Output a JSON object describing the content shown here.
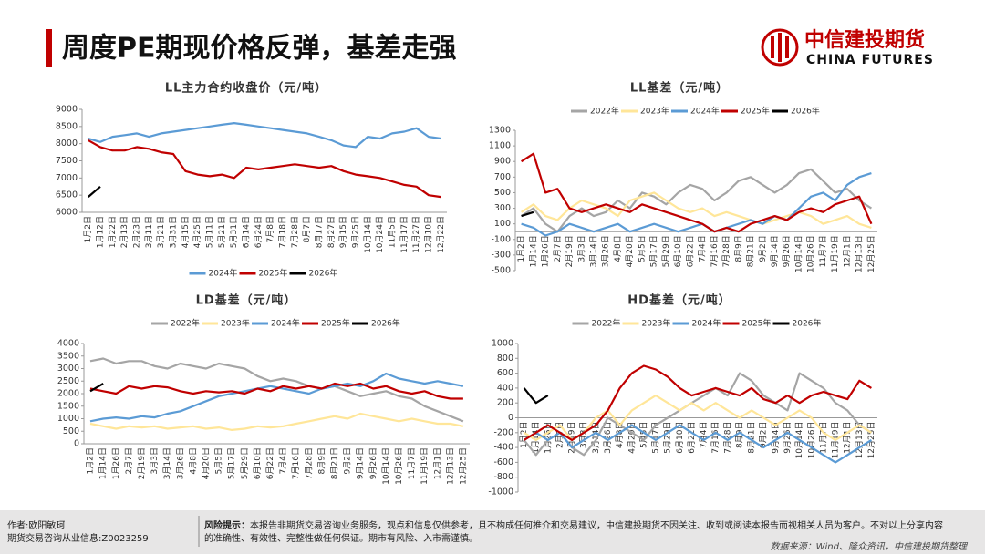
{
  "header": {
    "title": "周度PE期现价格反弹，基差走强",
    "logo_cn": "中信建投期货",
    "logo_en": "CHINA FUTURES"
  },
  "chart_data": [
    {
      "type": "line",
      "title": "LL主力合约收盘价（元/吨）",
      "legend": "bottom",
      "grid": false,
      "categories": [
        "1月2日",
        "1月12日",
        "1月22日",
        "2月13日",
        "2月23日",
        "3月11日",
        "3月21日",
        "3月31日",
        "4月15日",
        "4月25日",
        "5月11日",
        "5月21日",
        "5月31日",
        "6月14日",
        "6月24日",
        "7月8日",
        "7月18日",
        "7月28日",
        "8月7日",
        "8月17日",
        "8月27日",
        "9月15日",
        "9月25日",
        "10月14日",
        "10月24日",
        "11月5日",
        "11月17日",
        "11月27日",
        "12月10日",
        "12月22日"
      ],
      "ylim": [
        6000,
        9000
      ],
      "yticks": [
        6000,
        6500,
        7000,
        7500,
        8000,
        8500,
        9000
      ],
      "series": [
        {
          "name": "2024年",
          "color": "#5b9bd5",
          "values": [
            8150,
            8050,
            8200,
            8250,
            8300,
            8200,
            8300,
            8350,
            8400,
            8450,
            8500,
            8550,
            8600,
            8550,
            8500,
            8450,
            8400,
            8350,
            8300,
            8200,
            8100,
            7950,
            7900,
            8200,
            8150,
            8300,
            8350,
            8450,
            8200,
            8150
          ]
        },
        {
          "name": "2025年",
          "color": "#c00000",
          "values": [
            8100,
            7900,
            7800,
            7800,
            7900,
            7850,
            7750,
            7700,
            7200,
            7100,
            7050,
            7100,
            7000,
            7300,
            7250,
            7300,
            7350,
            7400,
            7350,
            7300,
            7350,
            7200,
            7100,
            7050,
            7000,
            6900,
            6800,
            6750,
            6500,
            6450
          ]
        },
        {
          "name": "2026年",
          "color": "#000000",
          "values": [
            6450,
            6750,
            null,
            null,
            null,
            null,
            null,
            null,
            null,
            null,
            null,
            null,
            null,
            null,
            null,
            null,
            null,
            null,
            null,
            null,
            null,
            null,
            null,
            null,
            null,
            null,
            null,
            null,
            null,
            null
          ]
        }
      ]
    },
    {
      "type": "line",
      "title": "LL基差（元/吨）",
      "legend": "top",
      "grid": false,
      "categories": [
        "1月2日",
        "1月14日",
        "1月26日",
        "2月7日",
        "2月19日",
        "3月3日",
        "3月14日",
        "3月26日",
        "4月8日",
        "4月20日",
        "5月5日",
        "5月17日",
        "5月29日",
        "6月10日",
        "6月22日",
        "7月4日",
        "7月16日",
        "7月28日",
        "8月9日",
        "8月21日",
        "9月2日",
        "9月14日",
        "9月26日",
        "10月14日",
        "10月26日",
        "11月7日",
        "11月19日",
        "12月1日",
        "12月13日",
        "12月25日"
      ],
      "ylim": [
        -500,
        1300
      ],
      "yticks": [
        -500,
        -300,
        -100,
        100,
        300,
        500,
        700,
        900,
        1100,
        1300
      ],
      "series": [
        {
          "name": "2022年",
          "color": "#a5a5a5",
          "values": [
            200,
            300,
            100,
            0,
            200,
            300,
            200,
            250,
            400,
            300,
            500,
            450,
            350,
            500,
            600,
            550,
            400,
            500,
            650,
            700,
            600,
            500,
            600,
            750,
            800,
            650,
            500,
            550,
            400,
            300
          ]
        },
        {
          "name": "2023年",
          "color": "#ffe699",
          "values": [
            250,
            350,
            200,
            150,
            300,
            400,
            350,
            300,
            200,
            400,
            450,
            500,
            400,
            300,
            250,
            300,
            200,
            250,
            200,
            150,
            100,
            150,
            200,
            250,
            200,
            100,
            150,
            200,
            100,
            50
          ]
        },
        {
          "name": "2024年",
          "color": "#5b9bd5",
          "values": [
            100,
            50,
            -50,
            0,
            100,
            50,
            0,
            50,
            100,
            0,
            50,
            100,
            50,
            0,
            50,
            100,
            0,
            50,
            100,
            150,
            100,
            200,
            150,
            300,
            450,
            500,
            400,
            600,
            700,
            750
          ]
        },
        {
          "name": "2025年",
          "color": "#c00000",
          "values": [
            900,
            1000,
            500,
            550,
            300,
            250,
            300,
            350,
            300,
            250,
            350,
            300,
            250,
            200,
            150,
            100,
            0,
            50,
            0,
            100,
            150,
            200,
            150,
            250,
            300,
            250,
            350,
            400,
            450,
            100
          ]
        },
        {
          "name": "2026年",
          "color": "#000000",
          "values": [
            200,
            250,
            null,
            null,
            null,
            null,
            null,
            null,
            null,
            null,
            null,
            null,
            null,
            null,
            null,
            null,
            null,
            null,
            null,
            null,
            null,
            null,
            null,
            null,
            null,
            null,
            null,
            null,
            null,
            null
          ]
        }
      ]
    },
    {
      "type": "line",
      "title": "LD基差（元/吨）",
      "legend": "top",
      "grid": false,
      "categories": [
        "1月2日",
        "1月14日",
        "1月26日",
        "2月7日",
        "2月19日",
        "3月3日",
        "3月14日",
        "3月26日",
        "4月8日",
        "4月20日",
        "5月5日",
        "5月17日",
        "5月29日",
        "6月10日",
        "6月22日",
        "7月4日",
        "7月16日",
        "7月28日",
        "8月9日",
        "8月21日",
        "9月2日",
        "9月14日",
        "9月26日",
        "10月14日",
        "10月26日",
        "11月7日",
        "11月19日",
        "12月1日",
        "12月13日",
        "12月25日"
      ],
      "ylim": [
        0,
        4000
      ],
      "yticks": [
        0,
        500,
        1000,
        1500,
        2000,
        2500,
        3000,
        3500,
        4000
      ],
      "series": [
        {
          "name": "2022年",
          "color": "#a5a5a5",
          "values": [
            3300,
            3400,
            3200,
            3300,
            3300,
            3100,
            3000,
            3200,
            3100,
            3000,
            3200,
            3100,
            3000,
            2700,
            2500,
            2600,
            2500,
            2300,
            2200,
            2300,
            2100,
            1900,
            2000,
            2100,
            1900,
            1800,
            1500,
            1300,
            1100,
            900
          ]
        },
        {
          "name": "2023年",
          "color": "#ffe699",
          "values": [
            800,
            700,
            600,
            700,
            650,
            700,
            600,
            650,
            700,
            600,
            650,
            550,
            600,
            700,
            650,
            700,
            800,
            900,
            1000,
            1100,
            1000,
            1200,
            1100,
            1000,
            900,
            1000,
            900,
            800,
            800,
            700
          ]
        },
        {
          "name": "2024年",
          "color": "#5b9bd5",
          "values": [
            900,
            1000,
            1050,
            1000,
            1100,
            1050,
            1200,
            1300,
            1500,
            1700,
            1900,
            2000,
            2100,
            2200,
            2300,
            2200,
            2100,
            2000,
            2200,
            2300,
            2400,
            2300,
            2500,
            2800,
            2600,
            2500,
            2400,
            2500,
            2400,
            2300
          ]
        },
        {
          "name": "2025年",
          "color": "#c00000",
          "values": [
            2200,
            2100,
            2000,
            2300,
            2200,
            2300,
            2250,
            2100,
            2000,
            2100,
            2050,
            2100,
            2000,
            2200,
            2100,
            2300,
            2200,
            2300,
            2200,
            2400,
            2300,
            2400,
            2200,
            2300,
            2100,
            2000,
            2100,
            1900,
            1800,
            1800
          ]
        },
        {
          "name": "2026年",
          "color": "#000000",
          "values": [
            2100,
            2400,
            null,
            null,
            null,
            null,
            null,
            null,
            null,
            null,
            null,
            null,
            null,
            null,
            null,
            null,
            null,
            null,
            null,
            null,
            null,
            null,
            null,
            null,
            null,
            null,
            null,
            null,
            null,
            null
          ]
        }
      ]
    },
    {
      "type": "line",
      "title": "HD基差（元/吨）",
      "legend": "top",
      "grid": false,
      "categories": [
        "1月2日",
        "1月14日",
        "1月26日",
        "2月7日",
        "2月19日",
        "3月3日",
        "3月14日",
        "3月26日",
        "4月8日",
        "4月20日",
        "5月5日",
        "5月17日",
        "5月29日",
        "6月10日",
        "6月22日",
        "7月4日",
        "7月16日",
        "7月28日",
        "8月9日",
        "8月21日",
        "9月2日",
        "9月14日",
        "9月26日",
        "10月14日",
        "10月26日",
        "11月7日",
        "11月19日",
        "12月1日",
        "12月13日",
        "12月25日"
      ],
      "ylim": [
        -1000,
        1000
      ],
      "yticks": [
        -1000,
        -800,
        -600,
        -400,
        -200,
        0,
        200,
        400,
        600,
        800,
        1000
      ],
      "series": [
        {
          "name": "2022年",
          "color": "#a5a5a5",
          "values": [
            -300,
            -500,
            -300,
            -200,
            -400,
            -500,
            -300,
            0,
            -100,
            -200,
            -300,
            -100,
            0,
            100,
            200,
            300,
            400,
            300,
            600,
            500,
            300,
            200,
            100,
            600,
            500,
            400,
            200,
            100,
            -100,
            -200
          ]
        },
        {
          "name": "2023年",
          "color": "#ffe699",
          "values": [
            -200,
            -300,
            -200,
            -100,
            -300,
            -200,
            0,
            100,
            -100,
            100,
            200,
            300,
            200,
            100,
            200,
            100,
            200,
            100,
            0,
            100,
            0,
            -100,
            0,
            100,
            0,
            -200,
            -300,
            -200,
            -100,
            -200
          ]
        },
        {
          "name": "2024年",
          "color": "#5b9bd5",
          "values": [
            -300,
            -200,
            -300,
            -200,
            -400,
            -300,
            -200,
            -300,
            -200,
            -100,
            -200,
            -300,
            -200,
            -100,
            -200,
            -300,
            -200,
            -300,
            -200,
            -300,
            -400,
            -300,
            -200,
            -300,
            -400,
            -500,
            -600,
            -500,
            -400,
            -300
          ]
        },
        {
          "name": "2025年",
          "color": "#c00000",
          "values": [
            -300,
            -200,
            -100,
            -200,
            -300,
            -200,
            -100,
            100,
            400,
            600,
            700,
            650,
            550,
            400,
            300,
            350,
            400,
            350,
            300,
            400,
            250,
            200,
            300,
            200,
            300,
            350,
            300,
            250,
            500,
            400
          ]
        },
        {
          "name": "2026年",
          "color": "#000000",
          "values": [
            400,
            200,
            300,
            null,
            null,
            null,
            null,
            null,
            null,
            null,
            null,
            null,
            null,
            null,
            null,
            null,
            null,
            null,
            null,
            null,
            null,
            null,
            null,
            null,
            null,
            null,
            null,
            null,
            null,
            null
          ]
        }
      ]
    }
  ],
  "footer": {
    "author": "作者:欧阳敏珂",
    "license": "期货交易咨询从业信息:Z0023259",
    "risk_label": "风险提示：",
    "risk_lines": [
      "本报告非期货交易咨询业务服务，观点和信息仅供参考，且不构成任何推介和交易建议，中信建投期货不因关注、收到或阅读本报告而视相关人员为客户。不对以上分享内容",
      "的准确性、有效性、完整性做任何保证。期市有风险、入市需谨慎。"
    ],
    "source": "数据来源：Wind、隆众资讯，中信建投期货整理"
  }
}
